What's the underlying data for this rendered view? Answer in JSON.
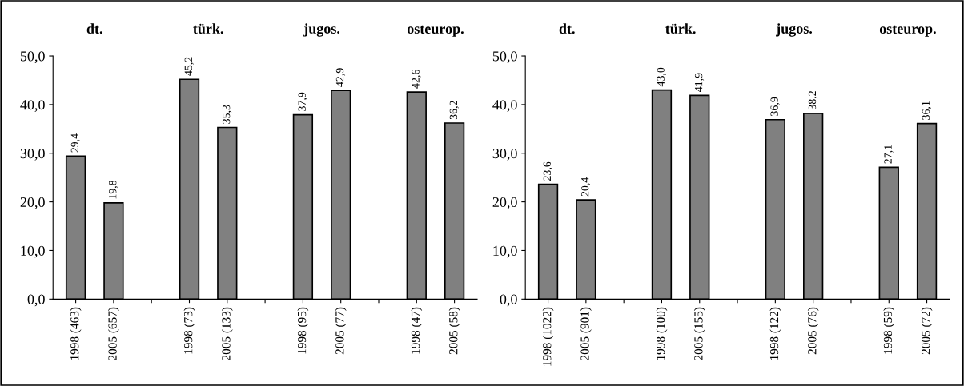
{
  "chart_data": [
    {
      "type": "bar",
      "categories": [
        "1998 (463)",
        "2005 (657)",
        null,
        "1998 (73)",
        "2005 (133)",
        null,
        "1998 (95)",
        "2005 (77)",
        null,
        "1998 (47)",
        "2005 (58)"
      ],
      "values": [
        29.4,
        19.8,
        null,
        45.2,
        35.3,
        null,
        37.9,
        42.9,
        null,
        42.6,
        36.2
      ],
      "value_labels": [
        "29,4",
        "19,8",
        null,
        "45,2",
        "35,3",
        null,
        "37,9",
        "42,9",
        null,
        "42,6",
        "36,2"
      ],
      "color": "#808080",
      "annotations": [
        "dt.",
        "türk.",
        "jugos.",
        "osteurop."
      ],
      "ylim": [
        0,
        50
      ],
      "yticks": [
        {
          "value": 0,
          "label": "0,0"
        },
        {
          "value": 10,
          "label": "10,0"
        },
        {
          "value": 20,
          "label": "20,0"
        },
        {
          "value": 30,
          "label": "30,0"
        },
        {
          "value": 40,
          "label": "40,0"
        },
        {
          "value": 50,
          "label": "50,0"
        }
      ],
      "grid": false,
      "legend": false
    },
    {
      "type": "bar",
      "categories": [
        "1998 (1022)",
        "2005 (901)",
        null,
        "1998 (100)",
        "2005 (155)",
        null,
        "1998 (122)",
        "2005 (76)",
        null,
        "1998 (59)",
        "2005 (72)"
      ],
      "values": [
        23.6,
        20.4,
        null,
        43.0,
        41.9,
        null,
        36.9,
        38.2,
        null,
        27.1,
        36.1
      ],
      "value_labels": [
        "23,6",
        "20,4",
        null,
        "43,0",
        "41,9",
        null,
        "36,9",
        "38,2",
        null,
        "27,1",
        "36,1"
      ],
      "color": "#808080",
      "annotations": [
        "dt.",
        "türk.",
        "jugos.",
        "osteurop."
      ],
      "ylim": [
        0,
        50
      ],
      "yticks": [
        {
          "value": 0,
          "label": "0,0"
        },
        {
          "value": 10,
          "label": "10,0"
        },
        {
          "value": 20,
          "label": "20,0"
        },
        {
          "value": 30,
          "label": "30,0"
        },
        {
          "value": 40,
          "label": "40,0"
        },
        {
          "value": 50,
          "label": "50,0"
        }
      ],
      "grid": false,
      "legend": false
    }
  ]
}
